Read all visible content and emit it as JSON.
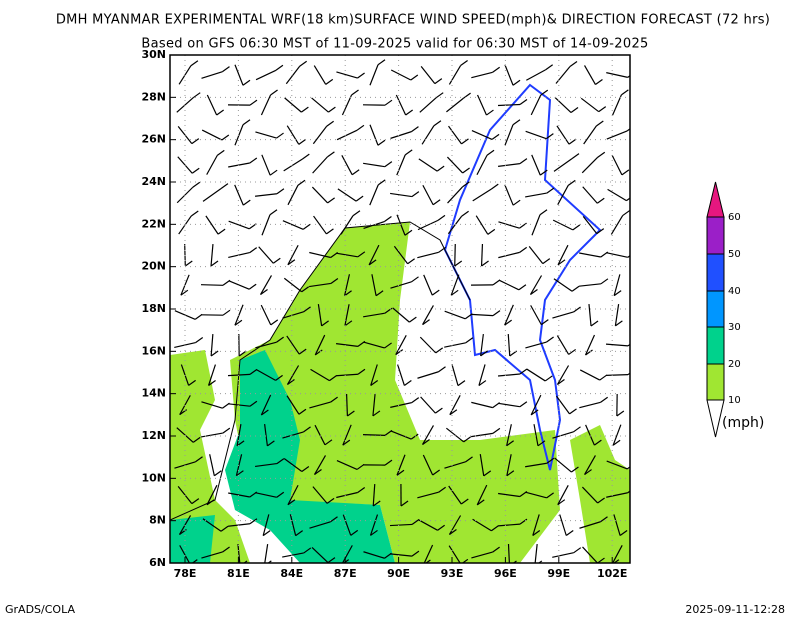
{
  "title": {
    "line1": "DMH MYANMAR EXPERIMENTAL WRF(18 km)SURFACE WIND SPEED(mph)& DIRECTION FORECAST (72 hrs)",
    "line2": "Based on GFS 06:30 MST of 11-09-2025 valid for 06:30 MST of 14-09-2025"
  },
  "lat_labels": [
    "30N",
    "28N",
    "26N",
    "24N",
    "22N",
    "20N",
    "18N",
    "16N",
    "14N",
    "12N",
    "10N",
    "8N",
    "6N"
  ],
  "lon_labels": [
    "78E",
    "81E",
    "84E",
    "87E",
    "90E",
    "93E",
    "96E",
    "99E",
    "102E"
  ],
  "colorbar": {
    "labels": [
      "10",
      "20",
      "30",
      "40",
      "50",
      "60"
    ],
    "unit": "(mph)"
  },
  "footer": {
    "left": "GrADS/COLA",
    "right": "2025-09-11-12:28"
  }
}
